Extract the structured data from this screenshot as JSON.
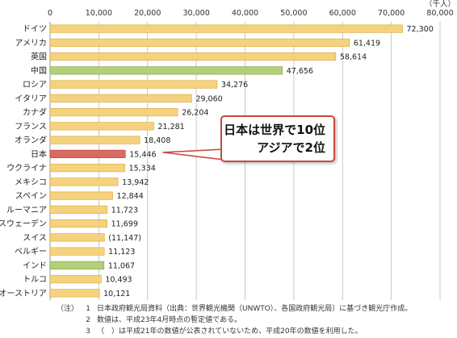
{
  "chart_data": {
    "type": "bar",
    "orientation": "horizontal",
    "unit_label": "（千人）",
    "x_ticks": [
      0,
      10000,
      20000,
      30000,
      40000,
      50000,
      60000,
      70000,
      80000
    ],
    "xlim": [
      0,
      80000
    ],
    "grid": true,
    "categories": [
      "ドイツ",
      "アメリカ",
      "英国",
      "中国",
      "ロシア",
      "イタリア",
      "カナダ",
      "フランス",
      "オランダ",
      "日本",
      "ウクライナ",
      "メキシコ",
      "スペイン",
      "ルーマニア",
      "スウェーデン",
      "スイス",
      "ベルギー",
      "インド",
      "トルコ",
      "オーストリア"
    ],
    "values": [
      72300,
      61419,
      58614,
      47656,
      34276,
      29060,
      26204,
      21281,
      18408,
      15446,
      15334,
      13942,
      12844,
      11723,
      11699,
      11147,
      11123,
      11067,
      10493,
      10121
    ],
    "value_labels": [
      "72,300",
      "61,419",
      "58,614",
      "47,656",
      "34,276",
      "29,060",
      "26,204",
      "21,281",
      "18,408",
      "15,446",
      "15,334",
      "13,942",
      "12,844",
      "11,723",
      "11,699",
      "(11,147)",
      "11,123",
      "11,067",
      "10,493",
      "10,121"
    ],
    "bar_colors": [
      "#f5d27e",
      "#f5d27e",
      "#f5d27e",
      "#b3cf7a",
      "#f5d27e",
      "#f5d27e",
      "#f5d27e",
      "#f5d27e",
      "#f5d27e",
      "#d96a5f",
      "#f5d27e",
      "#f5d27e",
      "#f5d27e",
      "#f5d27e",
      "#f5d27e",
      "#f5d27e",
      "#f5d27e",
      "#b3cf7a",
      "#f5d27e",
      "#f5d27e"
    ],
    "bar_edge_colors": [
      "#d9a63a",
      "#d9a63a",
      "#d9a63a",
      "#7ea23f",
      "#d9a63a",
      "#d9a63a",
      "#d9a63a",
      "#d9a63a",
      "#d9a63a",
      "#b03a30",
      "#d9a63a",
      "#d9a63a",
      "#d9a63a",
      "#d9a63a",
      "#d9a63a",
      "#d9a63a",
      "#d9a63a",
      "#7ea23f",
      "#d9a63a",
      "#d9a63a"
    ],
    "callout": {
      "lines": [
        "日本は世界で10位",
        "アジアで2位"
      ],
      "target_category": "日本",
      "border_color": "#c8493f"
    }
  },
  "notes": {
    "prefix": "（注）",
    "items": [
      {
        "num": "1",
        "text": "日本政府観光局資料（出典：世界観光機関（UNWTO）、各国政府観光局）に基づき観光庁作成。"
      },
      {
        "num": "2",
        "text": "数値は、平成23年4月時点の暫定値である。"
      },
      {
        "num": "3",
        "text": "（　）は平成21年の数値が公表されていないため、平成20年の数値を利用した。"
      }
    ]
  }
}
